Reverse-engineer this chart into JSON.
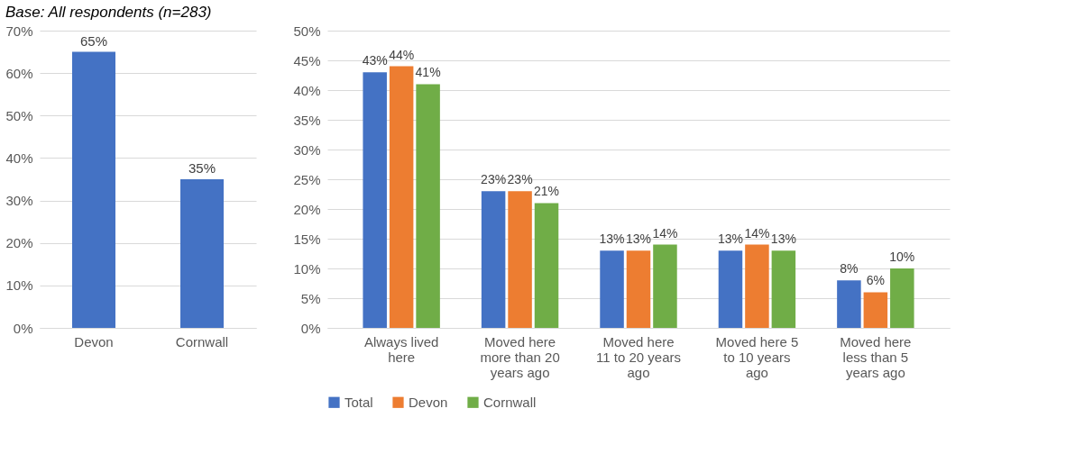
{
  "chart_data": [
    {
      "type": "bar",
      "annotations": [
        "Base: All respondents (n=283)"
      ],
      "categories": [
        "Devon",
        "Cornwall"
      ],
      "values": [
        65,
        35
      ],
      "color": "#4472c4",
      "value_labels": [
        "65%",
        "35%"
      ],
      "ylim": [
        0,
        70
      ],
      "yticks": [
        {
          "value": 0,
          "label": "0%"
        },
        {
          "value": 10,
          "label": "10%"
        },
        {
          "value": 20,
          "label": "20%"
        },
        {
          "value": 30,
          "label": "30%"
        },
        {
          "value": 40,
          "label": "40%"
        },
        {
          "value": 50,
          "label": "50%"
        },
        {
          "value": 60,
          "label": "60%"
        },
        {
          "value": 70,
          "label": "70%"
        }
      ],
      "grid": "y"
    },
    {
      "type": "bar",
      "categories": [
        "Always lived\nhere",
        "Moved here\nmore than 20\nyears ago",
        "Moved here\n11 to 20 years\nago",
        "Moved here 5\nto 10 years\nago",
        "Moved here\nless than 5\nyears ago"
      ],
      "series": [
        {
          "name": "Total",
          "color": "#4472c4",
          "values": [
            43,
            23,
            13,
            13,
            8
          ],
          "value_labels": [
            "43%",
            "23%",
            "13%",
            "13%",
            "8%"
          ]
        },
        {
          "name": "Devon",
          "color": "#ed7d31",
          "values": [
            44,
            23,
            13,
            14,
            6
          ],
          "value_labels": [
            "44%",
            "23%",
            "13%",
            "14%",
            "6%"
          ]
        },
        {
          "name": "Cornwall",
          "color": "#70ad47",
          "values": [
            41,
            21,
            14,
            13,
            10
          ],
          "value_labels": [
            "41%",
            "21%",
            "14%",
            "13%",
            "10%"
          ]
        }
      ],
      "ylim": [
        0,
        50
      ],
      "yticks": [
        {
          "value": 0,
          "label": "0%"
        },
        {
          "value": 5,
          "label": "5%"
        },
        {
          "value": 10,
          "label": "10%"
        },
        {
          "value": 15,
          "label": "15%"
        },
        {
          "value": 20,
          "label": "20%"
        },
        {
          "value": 25,
          "label": "25%"
        },
        {
          "value": 30,
          "label": "30%"
        },
        {
          "value": 35,
          "label": "35%"
        },
        {
          "value": 40,
          "label": "40%"
        },
        {
          "value": 45,
          "label": "45%"
        },
        {
          "value": 50,
          "label": "50%"
        }
      ],
      "grid": "y",
      "legend": "bottom"
    }
  ]
}
